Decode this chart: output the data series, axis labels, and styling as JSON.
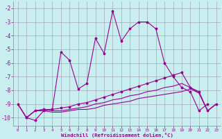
{
  "xlabel": "Windchill (Refroidissement éolien,°C)",
  "background_color": "#c8eef0",
  "line_color": "#990099",
  "grid_color": "#9999aa",
  "x_ticks": [
    0,
    1,
    2,
    3,
    4,
    5,
    6,
    7,
    8,
    9,
    10,
    11,
    12,
    13,
    14,
    15,
    16,
    17,
    18,
    19,
    20,
    21,
    22,
    23
  ],
  "y_ticks": [
    -2,
    -3,
    -4,
    -5,
    -6,
    -7,
    -8,
    -9,
    -10
  ],
  "ylim": [
    -10.6,
    -1.5
  ],
  "xlim": [
    -0.5,
    23.5
  ],
  "curve_main_x": [
    1,
    2,
    3,
    4,
    5,
    6,
    7,
    8,
    9,
    10,
    11,
    12,
    13,
    14,
    15,
    16,
    17,
    18,
    19,
    20,
    21,
    22
  ],
  "curve_main_y": [
    -10.0,
    -10.2,
    -9.5,
    -9.4,
    -5.2,
    -5.8,
    -7.9,
    -7.5,
    -4.2,
    -5.3,
    -2.2,
    -4.4,
    -3.5,
    -3.0,
    -3.0,
    -3.5,
    -6.0,
    -7.0,
    -7.8,
    -8.1,
    -9.5,
    -9.0
  ],
  "curve_flat1_x": [
    0,
    1,
    2,
    3,
    4,
    5,
    6,
    7,
    8,
    9,
    10,
    11,
    12,
    13,
    14,
    15,
    16,
    17,
    18,
    19,
    20,
    21,
    22,
    23
  ],
  "curve_flat1_y": [
    -9.0,
    -10.0,
    -9.5,
    -9.4,
    -9.4,
    -9.3,
    -9.2,
    -9.0,
    -8.9,
    -8.7,
    -8.5,
    -8.3,
    -8.1,
    -7.9,
    -7.7,
    -7.5,
    -7.3,
    -7.1,
    -6.9,
    -6.7,
    -7.8,
    -8.1,
    -9.5,
    -9.0
  ],
  "curve_flat2_x": [
    0,
    1,
    2,
    3,
    4,
    5,
    6,
    7,
    8,
    9,
    10,
    11,
    12,
    13,
    14,
    15,
    16,
    17,
    18,
    19,
    20,
    21,
    22,
    23
  ],
  "curve_flat2_y": [
    -9.0,
    -10.0,
    -9.5,
    -9.4,
    -9.5,
    -9.5,
    -9.4,
    -9.3,
    -9.2,
    -9.0,
    -8.9,
    -8.7,
    -8.6,
    -8.4,
    -8.3,
    -8.1,
    -8.0,
    -7.8,
    -7.7,
    -7.5,
    -7.8,
    -8.2,
    -9.5,
    -9.0
  ],
  "curve_flat3_x": [
    0,
    1,
    2,
    3,
    4,
    5,
    6,
    7,
    8,
    9,
    10,
    11,
    12,
    13,
    14,
    15,
    16,
    17,
    18,
    19,
    20,
    21,
    22,
    23
  ],
  "curve_flat3_y": [
    -9.0,
    -10.0,
    -9.5,
    -9.5,
    -9.6,
    -9.6,
    -9.5,
    -9.4,
    -9.4,
    -9.3,
    -9.1,
    -9.0,
    -8.9,
    -8.8,
    -8.6,
    -8.5,
    -8.4,
    -8.3,
    -8.2,
    -8.1,
    -7.9,
    -8.2,
    -9.5,
    -9.0
  ]
}
